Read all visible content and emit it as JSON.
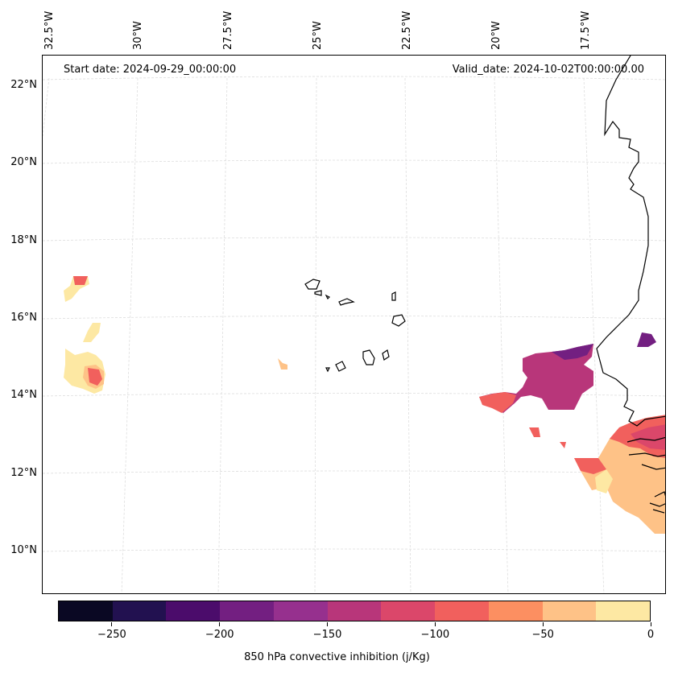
{
  "map": {
    "start_date": "Start date: 2024-09-29_00:00:00",
    "valid_date": "Valid_date: 2024-10-02T00:00:00.00",
    "lat_labels": [
      "22°N",
      "20°N",
      "18°N",
      "16°N",
      "14°N",
      "12°N",
      "10°N"
    ],
    "lon_labels": [
      "32.5°W",
      "30°W",
      "27.5°W",
      "25°W",
      "22.5°W",
      "20°W",
      "17.5°W"
    ],
    "gridline_color": "#dddddd",
    "coastline_color": "#000000"
  },
  "colorbar": {
    "label": "850 hPa convective inhibition (j/Kg)",
    "range": [
      -275,
      0
    ],
    "ticks": [
      "−250",
      "−200",
      "−150",
      "−100",
      "−50",
      "0"
    ],
    "colors": [
      "#0a0823",
      "#221150",
      "#4b0c6b",
      "#731f81",
      "#96308e",
      "#b8367a",
      "#db476a",
      "#f1605d",
      "#fc8f61",
      "#fec287",
      "#fde8a3"
    ]
  }
}
